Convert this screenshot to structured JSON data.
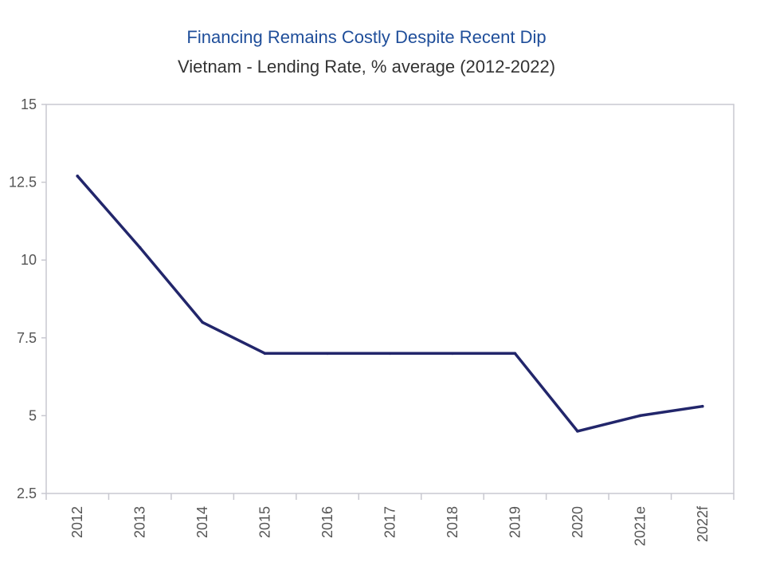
{
  "colors": {
    "title": "#1f4e9a",
    "series": "#22266b",
    "axis": "#c8c8d0"
  },
  "chart_data": {
    "type": "line",
    "title": "Financing Remains Costly Despite Recent Dip",
    "subtitle": "Vietnam - Lending Rate, % average (2012-2022)",
    "xlabel": "",
    "ylabel": "",
    "categories": [
      "2012",
      "2013",
      "2014",
      "2015",
      "2016",
      "2017",
      "2018",
      "2019",
      "2020",
      "2021e",
      "2022f"
    ],
    "series": [
      {
        "values": [
          12.7,
          10.4,
          8.0,
          7.0,
          7.0,
          7.0,
          7.0,
          7.0,
          4.5,
          5.0,
          5.3
        ]
      }
    ],
    "ylim": [
      2.5,
      15
    ],
    "yticks": [
      "15",
      "12.5",
      "10",
      "7.5",
      "5",
      "2.5"
    ],
    "grid": false,
    "legend": "none"
  }
}
